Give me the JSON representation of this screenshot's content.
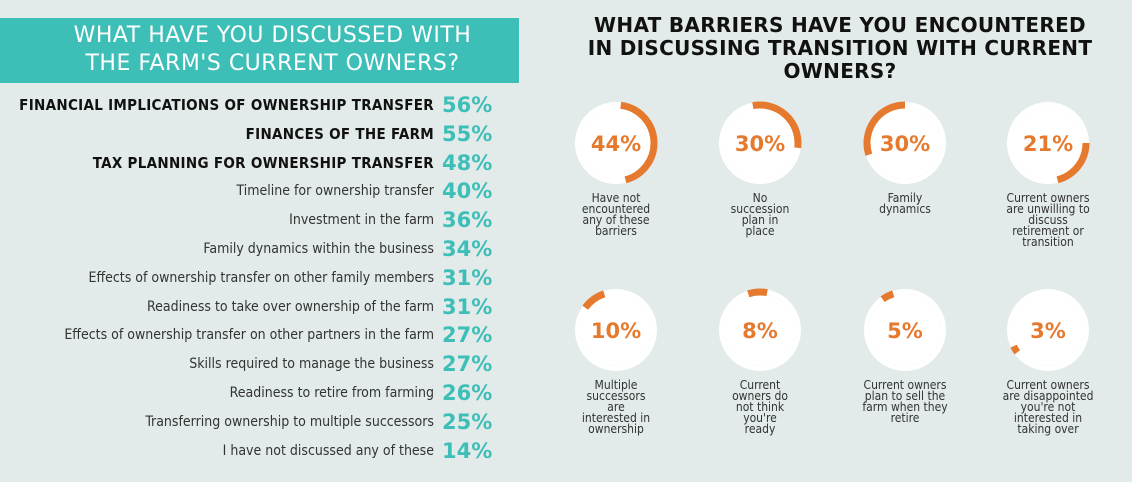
{
  "chart_data": [
    {
      "type": "bar",
      "title": "WHAT HAVE YOU DISCUSSED WITH THE FARM'S CURRENT OWNERS?",
      "title_lines": [
        "WHAT HAVE YOU DISCUSSED WITH",
        "THE FARM'S CURRENT OWNERS?"
      ],
      "categories": [
        "FINANCIAL IMPLICATIONS OF OWNERSHIP TRANSFER",
        "FINANCES OF THE FARM",
        "TAX PLANNING FOR OWNERSHIP TRANSFER",
        "Timeline for ownership transfer",
        "Investment in the farm",
        "Family dynamics within the business",
        "Effects of ownership transfer on other family members",
        "Readiness to take over ownership of the farm",
        "Effects of ownership transfer on other partners in the farm",
        "Skills required to manage the business",
        "Readiness to retire from farming",
        "Transferring ownership to multiple successors",
        "I have not discussed any of these"
      ],
      "values": [
        56,
        55,
        48,
        40,
        36,
        34,
        31,
        31,
        27,
        27,
        26,
        25,
        14
      ],
      "labels": [
        "56%",
        "55%",
        "48%",
        "40%",
        "36%",
        "34%",
        "31%",
        "31%",
        "27%",
        "27%",
        "26%",
        "25%",
        "14%"
      ],
      "highlighted": [
        0,
        1,
        2
      ],
      "value_color": "#3dbfb8",
      "header_color": "#3dbfb8"
    },
    {
      "type": "pie",
      "title": "WHAT BARRIERS HAVE YOU ENCOUNTERED IN DISCUSSING TRANSITION WITH CURRENT OWNERS?",
      "title_lines": [
        "WHAT BARRIERS HAVE YOU ENCOUNTERED",
        "IN DISCUSSING TRANSITION WITH CURRENT",
        "OWNERS?"
      ],
      "accent_color": "#e57a2f",
      "items": [
        {
          "value": 44,
          "label": "44%",
          "caption": [
            "Have not",
            "encountered",
            "any of these",
            "barriers"
          ]
        },
        {
          "value": 30,
          "label": "30%",
          "caption": [
            "No",
            "succession",
            "plan in",
            "place"
          ]
        },
        {
          "value": 30,
          "label": "30%",
          "caption": [
            "Family",
            "dynamics"
          ]
        },
        {
          "value": 21,
          "label": "21%",
          "caption": [
            "Current owners",
            "are unwilling to",
            "discuss",
            "retirement or",
            "transition"
          ]
        },
        {
          "value": 10,
          "label": "10%",
          "caption": [
            "Multiple",
            "successors",
            "are",
            "interested in",
            "ownership"
          ]
        },
        {
          "value": 8,
          "label": "8%",
          "caption": [
            "Current",
            "owners do",
            "not think",
            "you're",
            "ready"
          ]
        },
        {
          "value": 5,
          "label": "5%",
          "caption": [
            "Current owners",
            "plan to sell the",
            "farm when they",
            "retire"
          ]
        },
        {
          "value": 3,
          "label": "3%",
          "caption": [
            "Current owners",
            "are disappointed",
            "you're not",
            "interested in",
            "taking over"
          ]
        }
      ]
    }
  ]
}
